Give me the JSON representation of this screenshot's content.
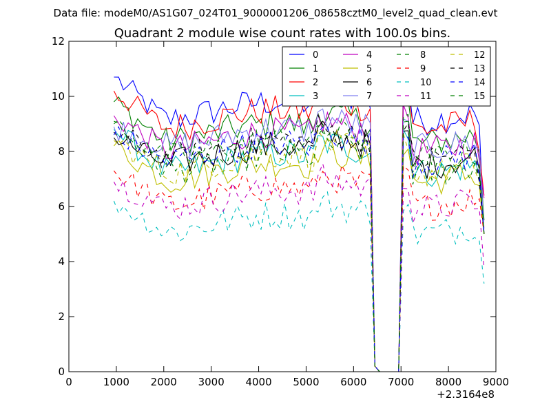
{
  "chart_data": {
    "type": "line",
    "suptitle": "Data file: modeM0/AS1G07_024T01_9000001206_08658cztM0_level2_quad_clean.evt",
    "title": "Quadrant 2 module wise count rates with 100.0s bins.",
    "xlabel": "",
    "ylabel": "",
    "x_offset_label": "+2.3164e8",
    "xlim": [
      0,
      9000
    ],
    "ylim": [
      0,
      12
    ],
    "x_ticks": [
      0,
      1000,
      2000,
      3000,
      4000,
      5000,
      6000,
      7000,
      8000,
      9000
    ],
    "y_ticks": [
      0,
      2,
      4,
      6,
      8,
      10,
      12
    ],
    "x_tick_labels": [
      "0",
      "1000",
      "2000",
      "3000",
      "4000",
      "5000",
      "6000",
      "7000",
      "8000",
      "9000"
    ],
    "y_tick_labels": [
      "0",
      "2",
      "4",
      "6",
      "8",
      "10",
      "12"
    ],
    "legend_position": "top-right",
    "legend_columns": 4,
    "time_bins": {
      "start": 950,
      "step": 100,
      "count": 79
    },
    "gap": {
      "from": 6450,
      "to": 7050,
      "value": 0
    },
    "series": [
      {
        "name": "0",
        "color": "#0000ff",
        "dash": "solid",
        "start_value": 10.7,
        "level": 9.2,
        "end_value": 5.0
      },
      {
        "name": "1",
        "color": "#008000",
        "dash": "solid",
        "start_value": 9.8,
        "level": 8.4,
        "end_value": 5.5
      },
      {
        "name": "2",
        "color": "#ff0000",
        "dash": "solid",
        "start_value": 10.2,
        "level": 8.9,
        "end_value": 6.4
      },
      {
        "name": "3",
        "color": "#00bfbf",
        "dash": "solid",
        "start_value": 8.8,
        "level": 7.3,
        "end_value": 5.0
      },
      {
        "name": "4",
        "color": "#bf00bf",
        "dash": "solid",
        "start_value": 9.3,
        "level": 8.1,
        "end_value": 6.3
      },
      {
        "name": "5",
        "color": "#bfbf00",
        "dash": "solid",
        "start_value": 8.2,
        "level": 7.0,
        "end_value": 5.0
      },
      {
        "name": "6",
        "color": "#000000",
        "dash": "solid",
        "start_value": 8.5,
        "level": 7.6,
        "end_value": 5.0
      },
      {
        "name": "7",
        "color": "#8080f0",
        "dash": "solid",
        "start_value": 8.9,
        "level": 8.2,
        "end_value": 5.2
      },
      {
        "name": "8",
        "color": "#008000",
        "dash": "dashed",
        "start_value": 9.1,
        "level": 7.3,
        "end_value": 5.0
      },
      {
        "name": "9",
        "color": "#ff0000",
        "dash": "dashed",
        "start_value": 7.3,
        "level": 6.1,
        "end_value": 5.0
      },
      {
        "name": "10",
        "color": "#00bfbf",
        "dash": "dashed",
        "start_value": 6.2,
        "level": 5.1,
        "end_value": 3.2
      },
      {
        "name": "11",
        "color": "#bf00bf",
        "dash": "dashed",
        "start_value": 6.9,
        "level": 6.0,
        "end_value": 3.8
      },
      {
        "name": "12",
        "color": "#bfbf00",
        "dash": "dashed",
        "start_value": 8.4,
        "level": 7.3,
        "end_value": 5.0
      },
      {
        "name": "13",
        "color": "#000000",
        "dash": "dashed",
        "start_value": 8.7,
        "level": 7.8,
        "end_value": 5.0
      },
      {
        "name": "14",
        "color": "#0000ff",
        "dash": "dashed",
        "start_value": 8.6,
        "level": 7.7,
        "end_value": 5.0
      },
      {
        "name": "15",
        "color": "#008000",
        "dash": "dashed",
        "start_value": 9.0,
        "level": 7.8,
        "end_value": 5.0
      }
    ]
  }
}
